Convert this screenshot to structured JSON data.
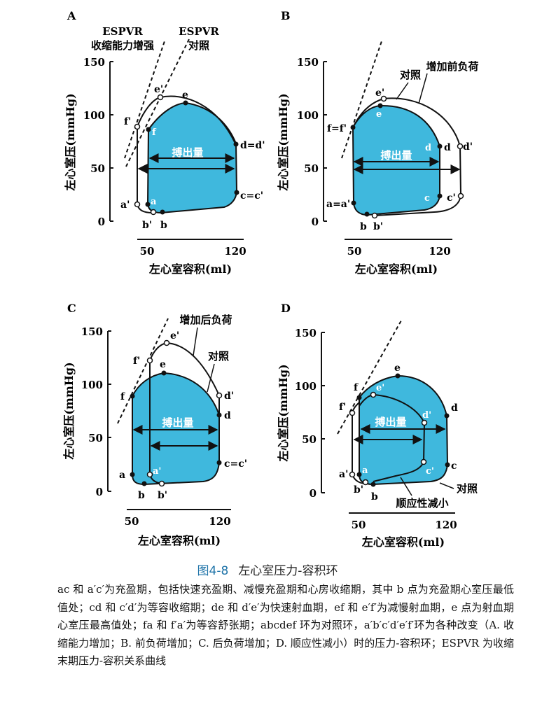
{
  "panels": [
    {
      "id": "A",
      "letter": "A",
      "ylabel": "左心室压(mmHg)",
      "xlabel": "左心室容积(ml)",
      "yticks": [
        "150",
        "100",
        "50",
        "0"
      ],
      "xticks": [
        "50",
        "120"
      ],
      "stroke_label": "搏出量",
      "annotations": [
        "ESPVR",
        "收缩能力增强",
        "ESPVR",
        "对照"
      ],
      "points": [
        "a'",
        "a",
        "b'",
        "b",
        "c=c'",
        "d=d'",
        "e",
        "e'",
        "f'",
        "f"
      ]
    },
    {
      "id": "B",
      "letter": "B",
      "ylabel": "左心室压(mmHg)",
      "xlabel": "左心室容积(ml)",
      "yticks": [
        "150",
        "100",
        "50",
        "0"
      ],
      "xticks": [
        "50",
        "120"
      ],
      "stroke_label": "搏出量",
      "annotations": [
        "对照",
        "增加前负荷"
      ],
      "points": [
        "a=a'",
        "b",
        "b'",
        "c",
        "c'",
        "d",
        "d'",
        "e",
        "e'",
        "f=f'",
        "e",
        "d",
        "c"
      ]
    },
    {
      "id": "C",
      "letter": "C",
      "ylabel": "左心室压(mmHg)",
      "xlabel": "左心室容积(ml)",
      "yticks": [
        "150",
        "100",
        "50",
        "0"
      ],
      "xticks": [
        "50",
        "120"
      ],
      "stroke_label": "搏出量",
      "annotations": [
        "增加后负荷",
        "对照"
      ],
      "points": [
        "a",
        "a'",
        "b",
        "b'",
        "c=c'",
        "d",
        "d'",
        "e",
        "e'",
        "f",
        "f'"
      ]
    },
    {
      "id": "D",
      "letter": "D",
      "ylabel": "左心室压(mmHg)",
      "xlabel": "左心室容积(ml)",
      "yticks": [
        "150",
        "100",
        "50",
        "0"
      ],
      "xticks": [
        "50",
        "120"
      ],
      "stroke_label": "搏出量",
      "annotations": [
        "对照",
        "顺应性减小"
      ],
      "points": [
        "a'",
        "a",
        "b'",
        "b",
        "c",
        "c'",
        "d",
        "d'",
        "e",
        "e'",
        "f",
        "f'"
      ]
    }
  ],
  "caption": {
    "tag": "图4-8",
    "title": "左心室压力-容积环",
    "body": "ac 和 a′c′为充盈期，包括快速充盈期、减慢充盈期和心房收缩期，其中 b 点为充盈期心室压最低值处；cd 和 c′d′为等容收缩期；de 和 d′e′为快速射血期，ef 和 e′f′为减慢射血期，e 点为射血期心室压最高值处；fa 和 f′a′为等容舒张期；abcdef 环为对照环，a′b′c′d′e′f′环为各种改变（A. 收缩能力增加；B. 前负荷增加；C. 后负荷增加；D. 顺应性减小）时的压力-容积环；ESPVR 为收缩末期压力-容积关系曲线"
  },
  "colors": {
    "loop_fill": "#3fb8dd",
    "loop_stroke": "#1a1a1a",
    "caption_tag": "#1e73a8"
  }
}
